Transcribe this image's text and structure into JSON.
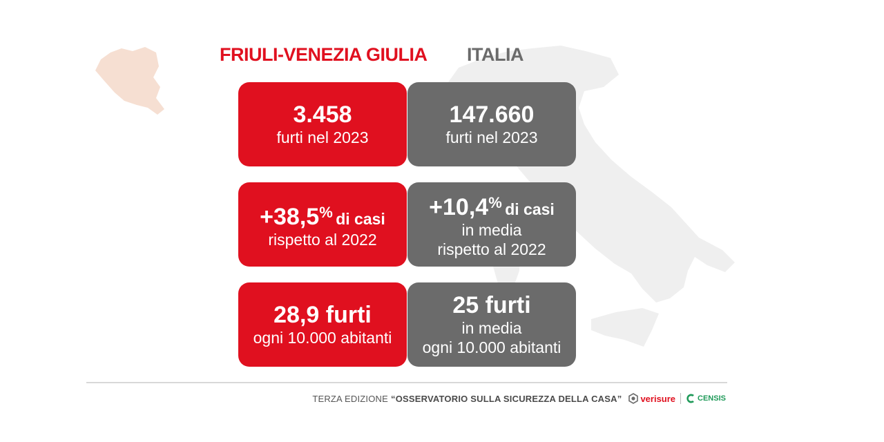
{
  "headers": {
    "left": "FRIULI-VENEZIA GIULIA",
    "right": "ITALIA"
  },
  "cards": {
    "fvg": [
      {
        "value": "3.458",
        "line": "furti nel 2023"
      },
      {
        "value": "+38,5",
        "sup": "%",
        "tail": "di casi",
        "line": "rispetto al 2022"
      },
      {
        "value": "28,9 furti",
        "line": "ogni 10.000 abitanti"
      }
    ],
    "italia": [
      {
        "value": "147.660",
        "line": "furti nel 2023"
      },
      {
        "value": "+10,4",
        "sup": "%",
        "tail": "di casi",
        "line2": "in media",
        "line": "rispetto al 2022"
      },
      {
        "value": "25 furti",
        "line2": "in media",
        "line": "ogni 10.000 abitanti"
      }
    ]
  },
  "footer": {
    "prefix": "TERZA EDIZIONE",
    "title": "“OSSERVATORIO SULLA SICUREZZA DELLA CASA”",
    "logo1": "verisure",
    "logo2": "CENSIS"
  },
  "colors": {
    "red": "#e0101f",
    "grey": "#6b6b6b",
    "map": "#efefef",
    "fvg_map": "#f6dfd2",
    "censis_green": "#1f9a59"
  }
}
